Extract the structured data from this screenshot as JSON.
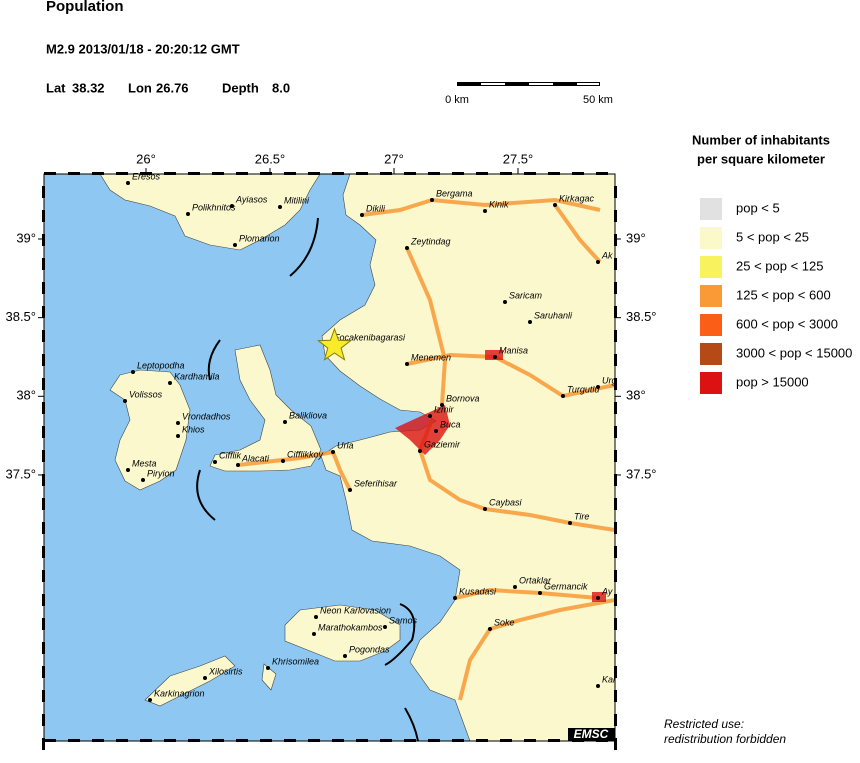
{
  "header": {
    "title": "Population",
    "event": "M2.9  2013/01/18 - 20:20:12 GMT",
    "lat_label": "Lat",
    "lat": 38.32,
    "lon_label": "Lon",
    "lon": 26.76,
    "depth_label": "Depth",
    "depth": "8.0"
  },
  "scale": {
    "start": "0 km",
    "end": "50 km"
  },
  "map": {
    "lon_ticks": [
      {
        "value": 26,
        "label": "26°"
      },
      {
        "value": 26.5,
        "label": "26.5°"
      },
      {
        "value": 27,
        "label": "27°"
      },
      {
        "value": 27.5,
        "label": "27.5°"
      }
    ],
    "lat_ticks": [
      {
        "value": 39,
        "label": "39°"
      },
      {
        "value": 38.5,
        "label": "38.5°"
      },
      {
        "value": 38,
        "label": "38°"
      },
      {
        "value": 37.5,
        "label": "37.5°"
      }
    ],
    "credit": "EMSC",
    "cities": [
      "Eresos",
      "Polikhnitos",
      "Ayiasos",
      "Mitilini",
      "Plomarion",
      "Dikili",
      "Bergama",
      "Kinik",
      "Kirkagac",
      "Zeytindag",
      "Ak",
      "Saricam",
      "Saruhanli",
      "Focakenibagarasi",
      "Menemen",
      "Manisa",
      "Leptopodha",
      "Kardhamila",
      "Volissos",
      "Vrondadhos",
      "Khios",
      "Balikliova",
      "Bornova",
      "Izmir",
      "Turgutlu",
      "Urg",
      "Urla",
      "Buca",
      "Gaziemir",
      "Cifflik",
      "Alacati",
      "Cifflikkoy",
      "Mesta",
      "Piryion",
      "Seferihisar",
      "Caybasi",
      "Tire",
      "Kusadasi",
      "Ortaklar",
      "Germancik",
      "Ay",
      "Neon Karlovasion",
      "Samos",
      "Marathokambos",
      "Soke",
      "Pogondas",
      "Khrisomilea",
      "Xilosirtis",
      "Karkinagrion",
      "Kar"
    ]
  },
  "legend": {
    "title_line1": "Number of inhabitants",
    "title_line2": "per square kilometer",
    "items": [
      {
        "label": "pop < 5",
        "color": "#e1e1e1"
      },
      {
        "label": "5 < pop < 25",
        "color": "#fbf8c9"
      },
      {
        "label": "25 < pop < 125",
        "color": "#f8f25e"
      },
      {
        "label": "125 < pop < 600",
        "color": "#f99a36"
      },
      {
        "label": "600 < pop < 3000",
        "color": "#fa5e17"
      },
      {
        "label": "3000 < pop < 15000",
        "color": "#b64a16"
      },
      {
        "label": "pop > 15000",
        "color": "#dc1111"
      }
    ]
  },
  "footer": {
    "line1": "Restricted use:",
    "line2": "redistribution forbidden"
  }
}
